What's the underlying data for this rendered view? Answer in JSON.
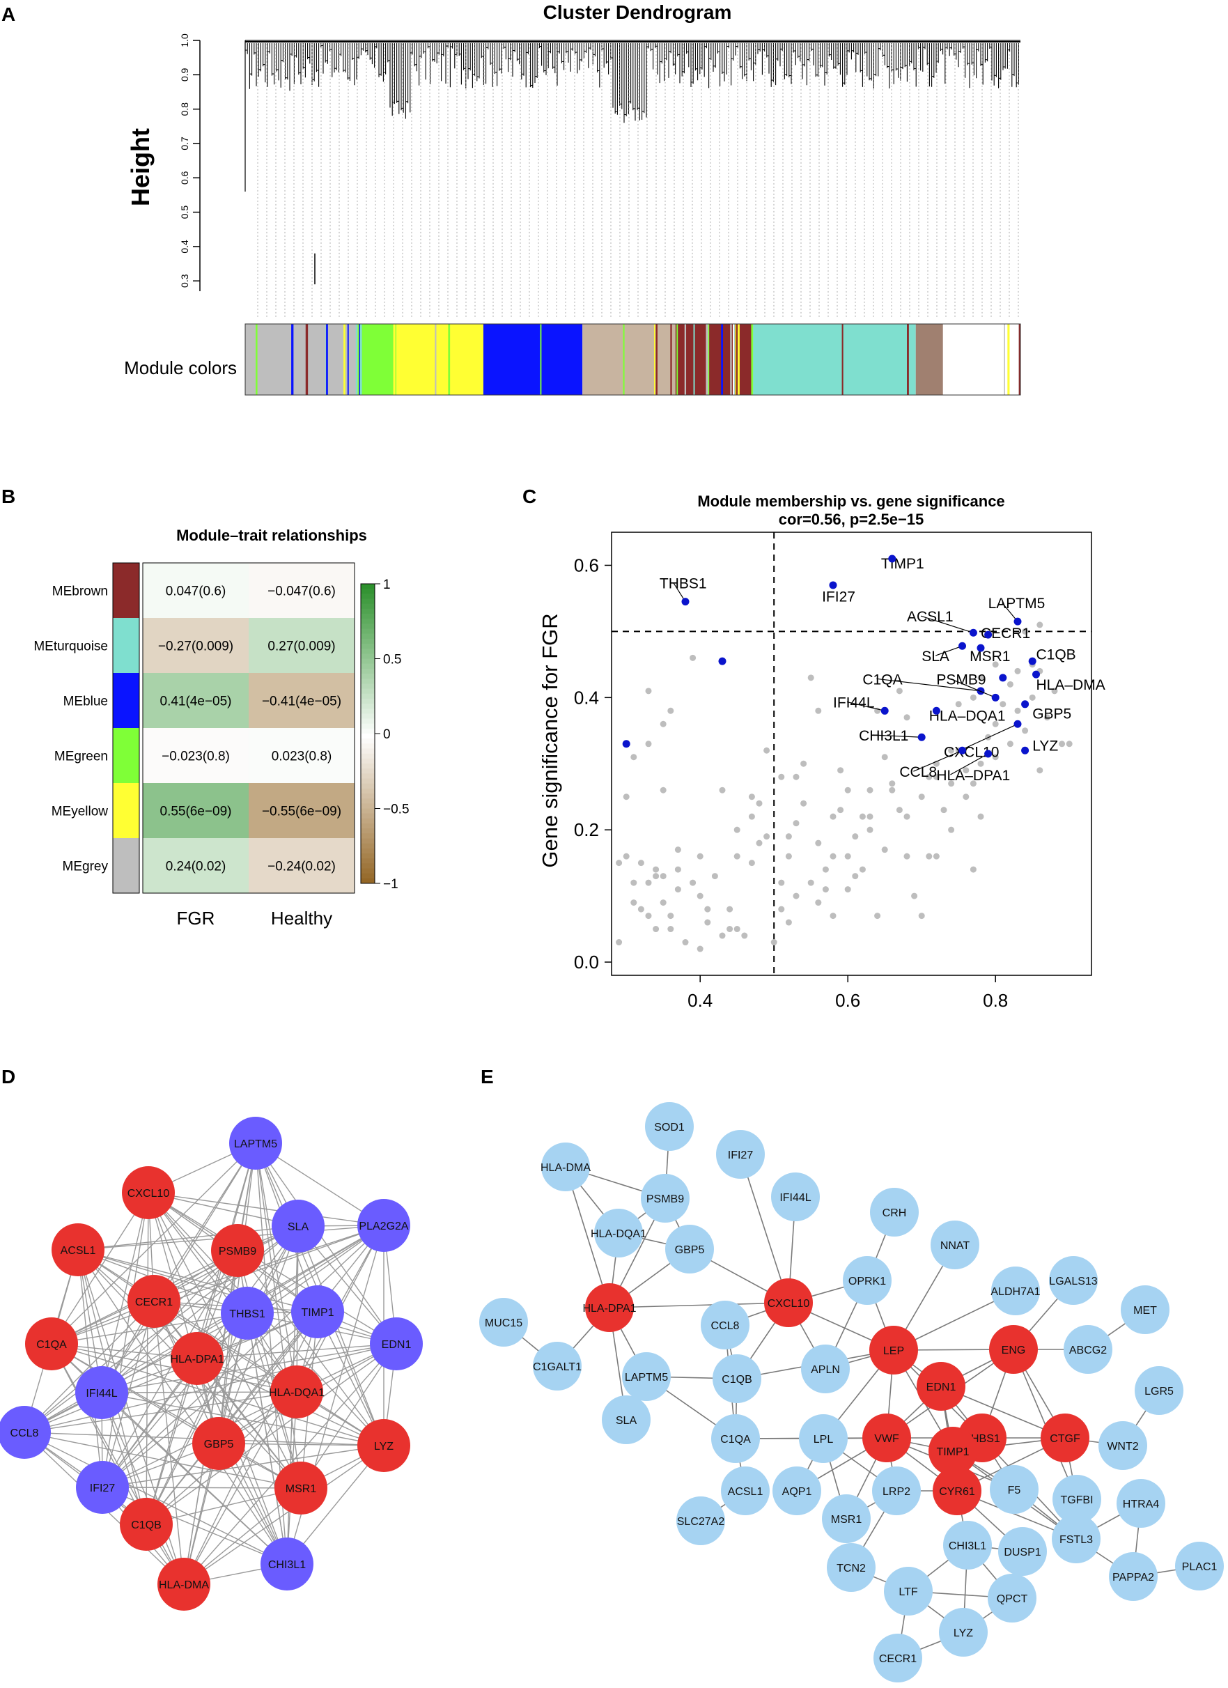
{
  "panels": {
    "A": "A",
    "B": "B",
    "C": "C",
    "D": "D",
    "E": "E"
  },
  "dendrogram": {
    "title": "Cluster Dendrogram",
    "ylabel": "Height",
    "yticks": [
      "0.3",
      "0.4",
      "0.5",
      "0.6",
      "0.7",
      "0.8",
      "0.9",
      "1.0"
    ],
    "ylim": [
      0.27,
      1.0
    ],
    "module_label": "Module colors",
    "module_colors": [
      {
        "name": "grey",
        "color": "#bebebe",
        "fraction": 0.145
      },
      {
        "name": "greenyellow",
        "color": "#7fff37",
        "fraction": 0.05
      },
      {
        "name": "yellow",
        "color": "#ffff33",
        "fraction": 0.11
      },
      {
        "name": "blue",
        "color": "#0a14ff",
        "fraction": 0.13
      },
      {
        "name": "mixed",
        "color": "#c8b4a0",
        "fraction": 0.12
      },
      {
        "name": "brown",
        "color": "#8b2a2a",
        "fraction": 0.1
      },
      {
        "name": "turquoise",
        "color": "#7fdfcf",
        "fraction": 0.21
      },
      {
        "name": "mixed-end",
        "color": "#a08070",
        "fraction": 0.035
      }
    ]
  },
  "heatmap": {
    "title": "Module–trait relationships",
    "columns": [
      "FGR",
      "Healthy"
    ],
    "rows": [
      {
        "name": "MEbrown",
        "color": "#8b2a2a",
        "values": [
          0.047,
          -0.047
        ],
        "labels": [
          "0.047(0.6)",
          "−0.047(0.6)"
        ]
      },
      {
        "name": "MEturquoise",
        "color": "#7fdfcf",
        "values": [
          -0.27,
          0.27
        ],
        "labels": [
          "−0.27(0.009)",
          "0.27(0.009)"
        ]
      },
      {
        "name": "MEblue",
        "color": "#0a14ff",
        "values": [
          0.41,
          -0.41
        ],
        "labels": [
          "0.41(4e−05)",
          "−0.41(4e−05)"
        ]
      },
      {
        "name": "MEgreen",
        "color": "#7fff37",
        "values": [
          -0.023,
          0.023
        ],
        "labels": [
          "−0.023(0.8)",
          "0.023(0.8)"
        ]
      },
      {
        "name": "MEyellow",
        "color": "#ffff33",
        "values": [
          0.55,
          -0.55
        ],
        "labels": [
          "0.55(6e−09)",
          "−0.55(6e−09)"
        ]
      },
      {
        "name": "MEgrey",
        "color": "#bebebe",
        "values": [
          0.24,
          -0.24
        ],
        "labels": [
          "0.24(0.02)",
          "−0.24(0.02)"
        ]
      }
    ],
    "legend_ticks": [
      "1",
      "0.5",
      "0",
      "−0.5",
      "−1"
    ]
  },
  "chart_data": {
    "type": "scatter",
    "title": "Module membership vs. gene significance",
    "subtitle": "cor=0.56, p=2.5e−15",
    "xlabel": "",
    "ylabel": "Gene significance for FGR",
    "xlim": [
      0.28,
      0.93
    ],
    "ylim": [
      -0.02,
      0.65
    ],
    "xticks": [
      "0.4",
      "0.6",
      "0.8"
    ],
    "yticks": [
      "0.0",
      "0.2",
      "0.4",
      "0.6"
    ],
    "hline": 0.5,
    "vline": 0.5,
    "grey_points": [
      [
        0.29,
        0.03
      ],
      [
        0.3,
        0.16
      ],
      [
        0.31,
        0.09
      ],
      [
        0.29,
        0.15
      ],
      [
        0.31,
        0.12
      ],
      [
        0.32,
        0.15
      ],
      [
        0.33,
        0.07
      ],
      [
        0.33,
        0.12
      ],
      [
        0.34,
        0.14
      ],
      [
        0.34,
        0.05
      ],
      [
        0.35,
        0.09
      ],
      [
        0.35,
        0.13
      ],
      [
        0.36,
        0.07
      ],
      [
        0.36,
        0.05
      ],
      [
        0.37,
        0.14
      ],
      [
        0.37,
        0.17
      ],
      [
        0.38,
        0.03
      ],
      [
        0.39,
        0.12
      ],
      [
        0.4,
        0.02
      ],
      [
        0.4,
        0.1
      ],
      [
        0.41,
        0.08
      ],
      [
        0.42,
        0.13
      ],
      [
        0.43,
        0.04
      ],
      [
        0.44,
        0.05
      ],
      [
        0.45,
        0.05
      ],
      [
        0.45,
        0.2
      ],
      [
        0.46,
        0.04
      ],
      [
        0.47,
        0.15
      ],
      [
        0.47,
        0.25
      ],
      [
        0.48,
        0.18
      ],
      [
        0.49,
        0.19
      ],
      [
        0.3,
        0.25
      ],
      [
        0.31,
        0.31
      ],
      [
        0.33,
        0.41
      ],
      [
        0.35,
        0.26
      ],
      [
        0.36,
        0.38
      ],
      [
        0.43,
        0.26
      ],
      [
        0.4,
        0.16
      ],
      [
        0.41,
        0.06
      ],
      [
        0.44,
        0.08
      ],
      [
        0.35,
        0.36
      ],
      [
        0.34,
        0.13
      ],
      [
        0.37,
        0.11
      ],
      [
        0.48,
        0.24
      ],
      [
        0.49,
        0.32
      ],
      [
        0.39,
        0.46
      ],
      [
        0.33,
        0.33
      ],
      [
        0.45,
        0.16
      ],
      [
        0.32,
        0.08
      ],
      [
        0.47,
        0.22
      ],
      [
        0.5,
        0.03
      ],
      [
        0.51,
        0.08
      ],
      [
        0.51,
        0.12
      ],
      [
        0.52,
        0.06
      ],
      [
        0.52,
        0.19
      ],
      [
        0.53,
        0.1
      ],
      [
        0.53,
        0.28
      ],
      [
        0.54,
        0.3
      ],
      [
        0.55,
        0.12
      ],
      [
        0.55,
        0.43
      ],
      [
        0.56,
        0.18
      ],
      [
        0.56,
        0.38
      ],
      [
        0.57,
        0.14
      ],
      [
        0.58,
        0.22
      ],
      [
        0.58,
        0.16
      ],
      [
        0.59,
        0.23
      ],
      [
        0.6,
        0.16
      ],
      [
        0.6,
        0.26
      ],
      [
        0.61,
        0.19
      ],
      [
        0.62,
        0.22
      ],
      [
        0.62,
        0.14
      ],
      [
        0.63,
        0.26
      ],
      [
        0.63,
        0.2
      ],
      [
        0.64,
        0.07
      ],
      [
        0.65,
        0.17
      ],
      [
        0.65,
        0.31
      ],
      [
        0.66,
        0.27
      ],
      [
        0.67,
        0.23
      ],
      [
        0.68,
        0.16
      ],
      [
        0.68,
        0.22
      ],
      [
        0.69,
        0.1
      ],
      [
        0.7,
        0.07
      ],
      [
        0.7,
        0.25
      ],
      [
        0.71,
        0.28
      ],
      [
        0.72,
        0.16
      ],
      [
        0.72,
        0.3
      ],
      [
        0.73,
        0.23
      ],
      [
        0.74,
        0.27
      ],
      [
        0.74,
        0.2
      ],
      [
        0.75,
        0.32
      ],
      [
        0.76,
        0.25
      ],
      [
        0.76,
        0.29
      ],
      [
        0.77,
        0.14
      ],
      [
        0.77,
        0.27
      ],
      [
        0.78,
        0.22
      ],
      [
        0.78,
        0.3
      ],
      [
        0.79,
        0.34
      ],
      [
        0.8,
        0.31
      ],
      [
        0.8,
        0.36
      ],
      [
        0.81,
        0.39
      ],
      [
        0.82,
        0.42
      ],
      [
        0.82,
        0.33
      ],
      [
        0.83,
        0.38
      ],
      [
        0.84,
        0.35
      ],
      [
        0.85,
        0.4
      ],
      [
        0.86,
        0.29
      ],
      [
        0.86,
        0.44
      ],
      [
        0.87,
        0.37
      ],
      [
        0.88,
        0.41
      ],
      [
        0.89,
        0.33
      ],
      [
        0.9,
        0.33
      ],
      [
        0.71,
        0.16
      ],
      [
        0.66,
        0.26
      ],
      [
        0.54,
        0.24
      ],
      [
        0.57,
        0.11
      ],
      [
        0.59,
        0.29
      ],
      [
        0.61,
        0.13
      ],
      [
        0.53,
        0.21
      ],
      [
        0.52,
        0.16
      ],
      [
        0.63,
        0.22
      ],
      [
        0.64,
        0.38
      ],
      [
        0.67,
        0.41
      ],
      [
        0.68,
        0.37
      ],
      [
        0.72,
        0.28
      ],
      [
        0.75,
        0.39
      ],
      [
        0.78,
        0.43
      ],
      [
        0.8,
        0.45
      ],
      [
        0.84,
        0.5
      ],
      [
        0.86,
        0.51
      ],
      [
        0.85,
        0.45
      ],
      [
        0.56,
        0.09
      ],
      [
        0.58,
        0.07
      ],
      [
        0.6,
        0.11
      ],
      [
        0.51,
        0.28
      ],
      [
        0.74,
        0.32
      ],
      [
        0.77,
        0.4
      ],
      [
        0.83,
        0.44
      ]
    ],
    "blue_points": [
      {
        "label": "TIMP1",
        "x": 0.66,
        "y": 0.61,
        "lx": 0.645,
        "ly": 0.595
      },
      {
        "label": "IFI27",
        "x": 0.58,
        "y": 0.57,
        "lx": 0.565,
        "ly": 0.545
      },
      {
        "label": "THBS1",
        "x": 0.38,
        "y": 0.545,
        "lx": 0.345,
        "ly": 0.565
      },
      {
        "label": "LAPTM5",
        "x": 0.83,
        "y": 0.515,
        "lx": 0.79,
        "ly": 0.535
      },
      {
        "label": "ACSL1",
        "x": 0.77,
        "y": 0.498,
        "lx": 0.68,
        "ly": 0.515
      },
      {
        "label": "CECR1",
        "x": 0.79,
        "y": 0.495,
        "lx": 0.78,
        "ly": 0.49
      },
      {
        "label": "SLA",
        "x": 0.755,
        "y": 0.478,
        "lx": 0.7,
        "ly": 0.455
      },
      {
        "label": "MSR1",
        "x": 0.78,
        "y": 0.475,
        "lx": 0.765,
        "ly": 0.455
      },
      {
        "label": "C1QB",
        "x": 0.85,
        "y": 0.455,
        "lx": 0.855,
        "ly": 0.458
      },
      {
        "label": "C1QA",
        "x": 0.78,
        "y": 0.41,
        "lx": 0.62,
        "ly": 0.42
      },
      {
        "label": "PSMB9",
        "x": 0.8,
        "y": 0.4,
        "lx": 0.72,
        "ly": 0.42
      },
      {
        "label": "HLA–DMA",
        "x": 0.855,
        "y": 0.435,
        "lx": 0.855,
        "ly": 0.412
      },
      {
        "label": "IFI44L",
        "x": 0.65,
        "y": 0.38,
        "lx": 0.58,
        "ly": 0.385
      },
      {
        "label": "GBP5",
        "x": 0.84,
        "y": 0.39,
        "lx": 0.85,
        "ly": 0.368
      },
      {
        "label": "HLA–DQA1",
        "x": 0.72,
        "y": 0.38,
        "lx": 0.71,
        "ly": 0.365
      },
      {
        "label": "CHI3L1",
        "x": 0.7,
        "y": 0.34,
        "lx": 0.615,
        "ly": 0.335
      },
      {
        "label": "CXCL10",
        "x": 0.83,
        "y": 0.36,
        "lx": 0.73,
        "ly": 0.31
      },
      {
        "label": "LYZ",
        "x": 0.84,
        "y": 0.32,
        "lx": 0.85,
        "ly": 0.32
      },
      {
        "label": "CCL8",
        "x": 0.755,
        "y": 0.32,
        "lx": 0.67,
        "ly": 0.28
      },
      {
        "label": "HLA–DPA1",
        "x": 0.79,
        "y": 0.315,
        "lx": 0.72,
        "ly": 0.275
      },
      {
        "label": "",
        "x": 0.43,
        "y": 0.455,
        "lx": 0.43,
        "ly": 0.455
      },
      {
        "label": "",
        "x": 0.3,
        "y": 0.33,
        "lx": 0.3,
        "ly": 0.33
      },
      {
        "label": "",
        "x": 0.81,
        "y": 0.43,
        "lx": 0.81,
        "ly": 0.43
      }
    ]
  },
  "network_d": {
    "red_color": "#e8322e",
    "blue_color": "#6a5cff",
    "nodes": [
      {
        "label": "LAPTM5",
        "kind": "blue"
      },
      {
        "label": "CXCL10",
        "kind": "red"
      },
      {
        "label": "SLA",
        "kind": "blue"
      },
      {
        "label": "PLA2G2A",
        "kind": "blue"
      },
      {
        "label": "ACSL1",
        "kind": "red"
      },
      {
        "label": "PSMB9",
        "kind": "red"
      },
      {
        "label": "CECR1",
        "kind": "red"
      },
      {
        "label": "THBS1",
        "kind": "blue"
      },
      {
        "label": "TIMP1",
        "kind": "blue"
      },
      {
        "label": "EDN1",
        "kind": "blue"
      },
      {
        "label": "C1QA",
        "kind": "red"
      },
      {
        "label": "HLA-DPA1",
        "kind": "red"
      },
      {
        "label": "HLA-DQA1",
        "kind": "red"
      },
      {
        "label": "IFI44L",
        "kind": "blue"
      },
      {
        "label": "CCL8",
        "kind": "blue"
      },
      {
        "label": "GBP5",
        "kind": "red"
      },
      {
        "label": "LYZ",
        "kind": "red"
      },
      {
        "label": "IFI27",
        "kind": "blue"
      },
      {
        "label": "MSR1",
        "kind": "red"
      },
      {
        "label": "C1QB",
        "kind": "red"
      },
      {
        "label": "CHI3L1",
        "kind": "blue"
      },
      {
        "label": "HLA-DMA",
        "kind": "red"
      }
    ]
  },
  "network_e": {
    "red_color": "#e8322e",
    "blue_color": "#a6d3f2",
    "nodes": [
      {
        "label": "SOD1",
        "kind": "blue"
      },
      {
        "label": "HLA-DMA",
        "kind": "blue"
      },
      {
        "label": "IFI27",
        "kind": "blue"
      },
      {
        "label": "PSMB9",
        "kind": "blue"
      },
      {
        "label": "IFI44L",
        "kind": "blue"
      },
      {
        "label": "HLA-DQA1",
        "kind": "blue"
      },
      {
        "label": "CRH",
        "kind": "blue"
      },
      {
        "label": "GBP5",
        "kind": "blue"
      },
      {
        "label": "NNAT",
        "kind": "blue"
      },
      {
        "label": "OPRK1",
        "kind": "blue"
      },
      {
        "label": "LGALS13",
        "kind": "blue"
      },
      {
        "label": "ALDH7A1",
        "kind": "blue"
      },
      {
        "label": "HLA-DPA1",
        "kind": "red"
      },
      {
        "label": "CXCL10",
        "kind": "red"
      },
      {
        "label": "MET",
        "kind": "blue"
      },
      {
        "label": "MUC15",
        "kind": "blue"
      },
      {
        "label": "CCL8",
        "kind": "blue"
      },
      {
        "label": "ABCG2",
        "kind": "blue"
      },
      {
        "label": "ENG",
        "kind": "red"
      },
      {
        "label": "LEP",
        "kind": "red"
      },
      {
        "label": "C1GALT1",
        "kind": "blue"
      },
      {
        "label": "APLN",
        "kind": "blue"
      },
      {
        "label": "LGR5",
        "kind": "blue"
      },
      {
        "label": "LAPTM5",
        "kind": "blue"
      },
      {
        "label": "C1QB",
        "kind": "blue"
      },
      {
        "label": "EDN1",
        "kind": "red"
      },
      {
        "label": "WNT2",
        "kind": "blue"
      },
      {
        "label": "CTGF",
        "kind": "red"
      },
      {
        "label": "THBS1",
        "kind": "red"
      },
      {
        "label": "SLA",
        "kind": "blue"
      },
      {
        "label": "C1QA",
        "kind": "blue"
      },
      {
        "label": "LPL",
        "kind": "blue"
      },
      {
        "label": "VWF",
        "kind": "red"
      },
      {
        "label": "TIMP1",
        "kind": "red"
      },
      {
        "label": "TGFBI",
        "kind": "blue"
      },
      {
        "label": "F5",
        "kind": "blue"
      },
      {
        "label": "ACSL1",
        "kind": "blue"
      },
      {
        "label": "AQP1",
        "kind": "blue"
      },
      {
        "label": "LRP2",
        "kind": "blue"
      },
      {
        "label": "CYR61",
        "kind": "red"
      },
      {
        "label": "MSR1",
        "kind": "blue"
      },
      {
        "label": "SLC27A2",
        "kind": "blue"
      },
      {
        "label": "HTRA4",
        "kind": "blue"
      },
      {
        "label": "CHI3L1",
        "kind": "blue"
      },
      {
        "label": "FSTL3",
        "kind": "blue"
      },
      {
        "label": "DUSP1",
        "kind": "blue"
      },
      {
        "label": "TCN2",
        "kind": "blue"
      },
      {
        "label": "PLAC1",
        "kind": "blue"
      },
      {
        "label": "PAPPA2",
        "kind": "blue"
      },
      {
        "label": "LTF",
        "kind": "blue"
      },
      {
        "label": "QPCT",
        "kind": "blue"
      },
      {
        "label": "LYZ",
        "kind": "blue"
      },
      {
        "label": "CECR1",
        "kind": "blue"
      }
    ]
  }
}
